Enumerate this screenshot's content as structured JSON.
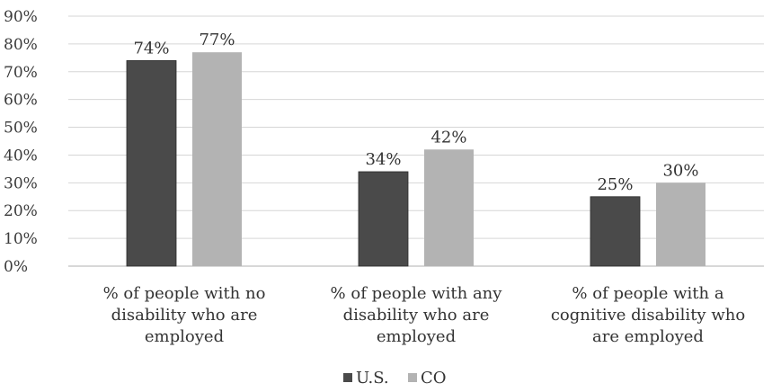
{
  "chart_data": {
    "type": "bar",
    "categories": [
      [
        "% of people with no",
        "disability who are",
        "employed"
      ],
      [
        "% of people with any",
        "disability who are",
        "employed"
      ],
      [
        "% of people with a",
        "cognitive disability who",
        "are employed"
      ]
    ],
    "series": [
      {
        "name": "U.S.",
        "values": [
          74,
          34,
          25
        ],
        "color": "#4a4a4a"
      },
      {
        "name": "CO",
        "values": [
          77,
          42,
          30
        ],
        "color": "#b3b3b3"
      }
    ],
    "data_labels": [
      [
        "74%",
        "34%",
        "25%"
      ],
      [
        "77%",
        "42%",
        "30%"
      ]
    ],
    "y_ticks": [
      0,
      10,
      20,
      30,
      40,
      50,
      60,
      70,
      80,
      90
    ],
    "y_tick_labels": [
      "0%",
      "10%",
      "20%",
      "30%",
      "40%",
      "50%",
      "60%",
      "70%",
      "80%",
      "90%"
    ],
    "ylim": [
      0,
      90
    ],
    "grid": true,
    "legend_position": "bottom",
    "title": "",
    "xlabel": "",
    "ylabel": ""
  }
}
